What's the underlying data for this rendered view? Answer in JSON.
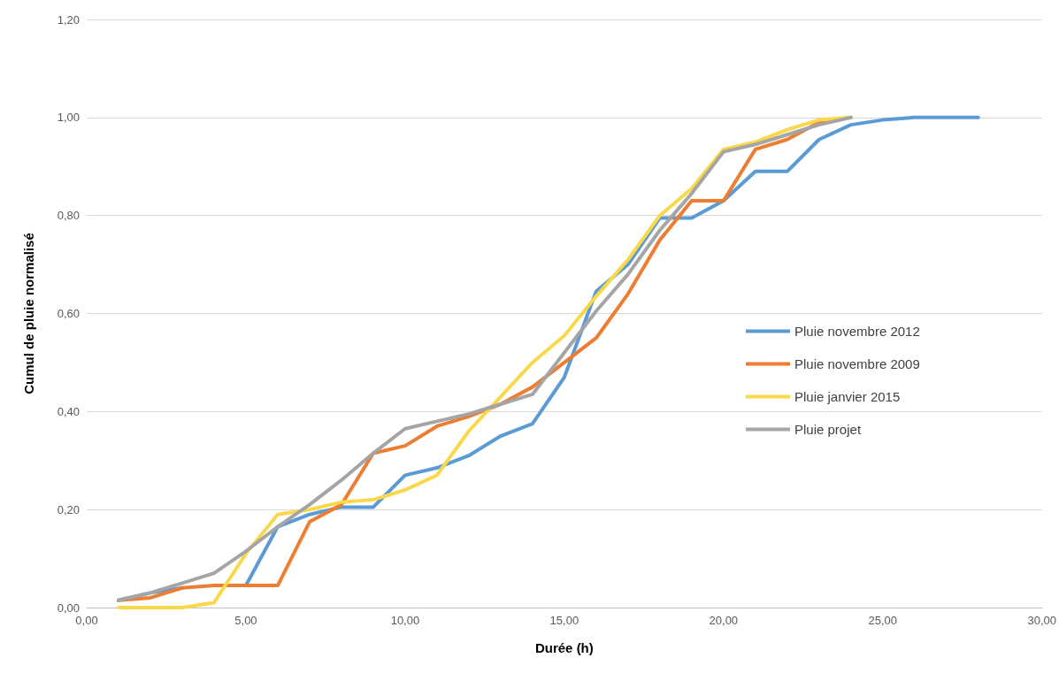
{
  "chart_data": {
    "type": "line",
    "xlabel": "Durée (h)",
    "ylabel": "Cumul de pluie normalisé",
    "xlim": [
      0,
      30
    ],
    "xticks": [
      {
        "value": 0,
        "label": "0,00"
      },
      {
        "value": 5,
        "label": "5,00"
      },
      {
        "value": 10,
        "label": "10,00"
      },
      {
        "value": 15,
        "label": "15,00"
      },
      {
        "value": 20,
        "label": "20,00"
      },
      {
        "value": 25,
        "label": "25,00"
      },
      {
        "value": 30,
        "label": "30,00"
      }
    ],
    "ylim": [
      0,
      1.2
    ],
    "yticks": [
      {
        "value": 0,
        "label": "0,00"
      },
      {
        "value": 0.2,
        "label": "0,20"
      },
      {
        "value": 0.4,
        "label": "0,40"
      },
      {
        "value": 0.6,
        "label": "0,60"
      },
      {
        "value": 0.8,
        "label": "0,80"
      },
      {
        "value": 1,
        "label": "1,00"
      },
      {
        "value": 1.2,
        "label": "1,20"
      }
    ],
    "grid": "y",
    "legend": "right",
    "marker": "none",
    "line_style": "solid",
    "series": [
      {
        "name": "Pluie novembre 2012",
        "color": "#5b9bd5",
        "x": [
          1,
          2,
          3,
          4,
          5,
          6,
          7,
          8,
          9,
          10,
          11,
          12,
          13,
          14,
          15,
          16,
          17,
          18,
          19,
          20,
          21,
          22,
          23,
          24,
          25,
          26,
          27,
          28
        ],
        "values": [
          0.015,
          0.03,
          0.04,
          null,
          0.045,
          0.165,
          0.19,
          0.205,
          0.205,
          0.27,
          0.285,
          0.31,
          0.35,
          0.375,
          0.47,
          0.645,
          0.7,
          0.795,
          0.795,
          0.83,
          0.89,
          0.89,
          0.955,
          0.985,
          0.995,
          1.0,
          1.0,
          1.0
        ]
      },
      {
        "name": "Pluie novembre 2009",
        "color": "#ed7d31",
        "x": [
          1,
          2,
          3,
          4,
          5,
          6,
          7,
          8,
          9,
          10,
          11,
          12,
          13,
          14,
          15,
          16,
          17,
          18,
          19,
          20,
          21,
          22,
          23,
          24
        ],
        "values": [
          0.015,
          0.02,
          0.04,
          0.045,
          0.045,
          0.045,
          0.175,
          0.21,
          0.315,
          0.33,
          0.37,
          0.39,
          0.415,
          0.45,
          0.5,
          0.55,
          0.64,
          0.75,
          0.83,
          0.83,
          0.935,
          0.955,
          0.99,
          1.0
        ]
      },
      {
        "name": "Pluie janvier 2015",
        "color": "#f9d84a",
        "x": [
          1,
          2,
          3,
          4,
          5,
          6,
          7,
          8,
          9,
          10,
          11,
          12,
          13,
          14,
          15,
          16,
          17,
          18,
          19,
          20,
          21,
          22,
          23,
          24
        ],
        "values": [
          0.0,
          0.0,
          0.0,
          0.01,
          0.11,
          0.19,
          0.2,
          0.215,
          0.22,
          0.24,
          0.27,
          0.36,
          0.43,
          0.5,
          0.555,
          0.635,
          0.71,
          0.8,
          0.855,
          0.935,
          0.95,
          0.975,
          0.995,
          1.0
        ]
      },
      {
        "name": "Pluie projet",
        "color": "#a5a5a5",
        "x": [
          1,
          2,
          3,
          4,
          5,
          6,
          7,
          8,
          9,
          10,
          11,
          12,
          13,
          14,
          15,
          16,
          17,
          18,
          19,
          20,
          21,
          22,
          23,
          24
        ],
        "values": [
          0.015,
          0.03,
          0.05,
          0.07,
          0.115,
          0.165,
          0.21,
          0.26,
          0.315,
          0.365,
          0.38,
          0.395,
          0.415,
          0.435,
          0.52,
          0.605,
          0.68,
          0.77,
          0.845,
          0.93,
          0.945,
          0.965,
          0.985,
          1.0
        ]
      }
    ]
  }
}
